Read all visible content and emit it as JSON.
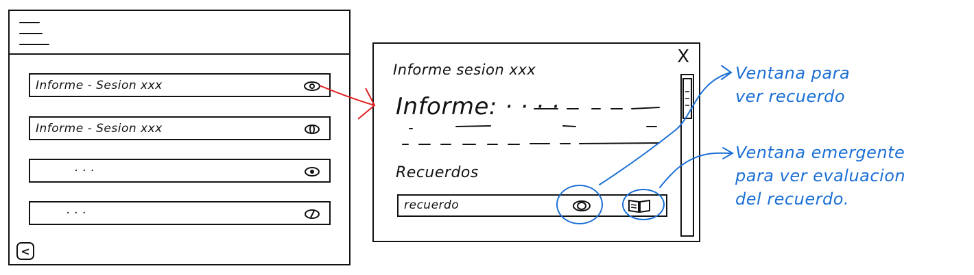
{
  "left_screen": {
    "rows": [
      {
        "label": "Informe - Sesion xxx"
      },
      {
        "label": "Informe - Sesion xxx"
      },
      {
        "label": "· · ·"
      },
      {
        "label": "· · ·"
      }
    ],
    "back_label": "<"
  },
  "popup": {
    "title": "Informe sesion xxx",
    "close_label": "X",
    "informe_label": "Informe: · · · ·",
    "recuerdos_label": "Recuerdos",
    "recuerdo_row_label": "recuerdo"
  },
  "annotations": {
    "note_1": [
      "Ventana para",
      "ver recuerdo"
    ],
    "note_2": [
      "Ventana emergente",
      "para ver evaluacion",
      "del recuerdo."
    ]
  },
  "colors": {
    "ink": "#111111",
    "annotation": "#1a6fd6",
    "arrow": "#e02020"
  }
}
